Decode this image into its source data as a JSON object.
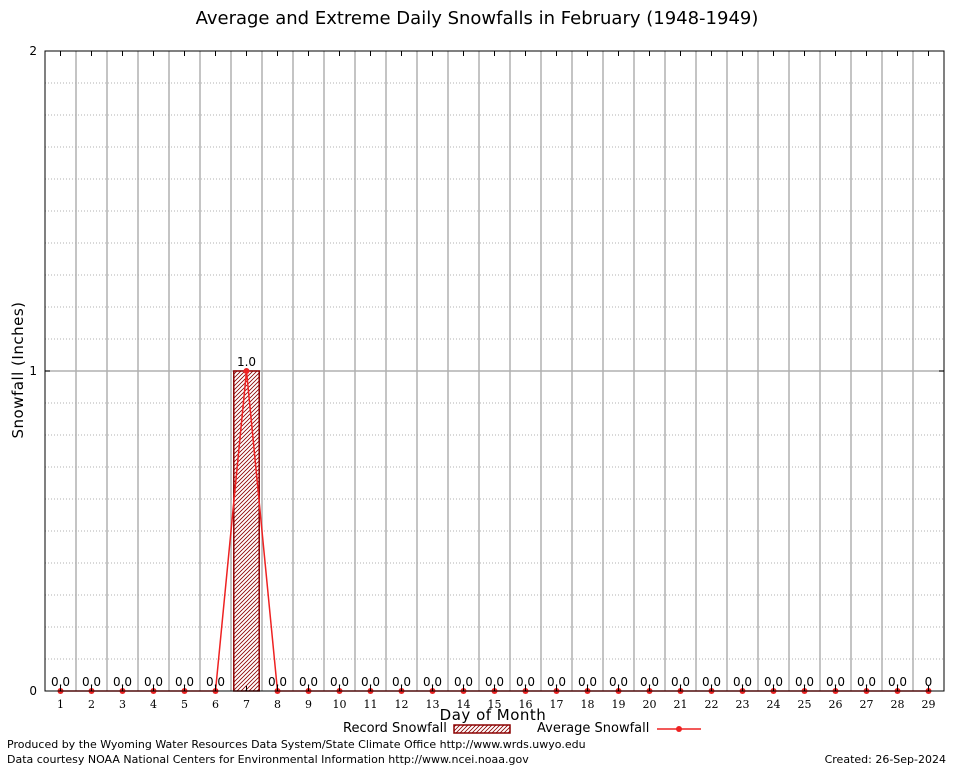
{
  "chart_data": {
    "type": "bar",
    "title": "Average and Extreme Daily Snowfalls in February (1948-1949)",
    "xlabel": "Day of Month",
    "ylabel": "Snowfall (Inches)",
    "ylim": [
      0,
      2
    ],
    "y_ticks": [
      "0",
      "1",
      "2"
    ],
    "categories": [
      "1",
      "2",
      "3",
      "4",
      "5",
      "6",
      "7",
      "8",
      "9",
      "10",
      "11",
      "12",
      "13",
      "14",
      "15",
      "16",
      "17",
      "18",
      "19",
      "20",
      "21",
      "22",
      "23",
      "24",
      "25",
      "26",
      "27",
      "28",
      "29"
    ],
    "series": [
      {
        "name": "Record Snowfall",
        "type": "bar",
        "values": [
          0,
          0,
          0,
          0,
          0,
          0,
          1.0,
          0,
          0,
          0,
          0,
          0,
          0,
          0,
          0,
          0,
          0,
          0,
          0,
          0,
          0,
          0,
          0,
          0,
          0,
          0,
          0,
          0,
          0
        ]
      },
      {
        "name": "Average Snowfall",
        "type": "line",
        "values": [
          0,
          0,
          0,
          0,
          0,
          0,
          1.0,
          0,
          0,
          0,
          0,
          0,
          0,
          0,
          0,
          0,
          0,
          0,
          0,
          0,
          0,
          0,
          0,
          0,
          0,
          0,
          0,
          0,
          0
        ]
      }
    ],
    "data_labels": [
      "0.0",
      "0.0",
      "0.0",
      "0.0",
      "0.0",
      "0.0",
      "1.0",
      "0.0",
      "0.0",
      "0.0",
      "0.0",
      "0.0",
      "0.0",
      "0.0",
      "0.0",
      "0.0",
      "0.0",
      "0.0",
      "0.0",
      "0.0",
      "0.0",
      "0.0",
      "0.0",
      "0.0",
      "0.0",
      "0.0",
      "0.0",
      "0.0",
      "0"
    ],
    "grid": true,
    "colors": {
      "bar_fill": "#c9a9a9",
      "bar_stroke": "#8b0000",
      "line": "#ee2222",
      "grid": "#b0b0b0"
    }
  },
  "legend": {
    "record": "Record Snowfall",
    "average": "Average Snowfall"
  },
  "footer": {
    "line1": "Produced by the Wyoming Water Resources Data System/State Climate Office http://www.wrds.uwyo.edu",
    "line2": "Data courtesy NOAA National Centers for Environmental Information http://www.ncei.noaa.gov",
    "created": "Created:  26-Sep-2024"
  }
}
